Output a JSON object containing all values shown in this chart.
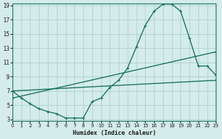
{
  "xlabel": "Humidex (Indice chaleur)",
  "ylabel": "",
  "bg_color": "#d4ecea",
  "line_color": "#1a7060",
  "grid_color": "#b0d4d0",
  "xlim": [
    0,
    23
  ],
  "ylim": [
    3,
    19
  ],
  "xticks": [
    0,
    1,
    2,
    3,
    4,
    5,
    6,
    7,
    8,
    9,
    10,
    11,
    12,
    13,
    14,
    15,
    16,
    17,
    18,
    19,
    20,
    21,
    22,
    23
  ],
  "yticks": [
    3,
    5,
    7,
    9,
    11,
    13,
    15,
    17,
    19
  ],
  "line1_x": [
    0,
    1,
    2,
    3,
    4,
    5,
    6,
    7,
    8,
    9,
    10,
    11,
    12,
    13,
    14,
    15,
    16,
    17,
    18,
    19,
    20,
    21,
    22,
    23
  ],
  "line1_y": [
    7,
    6,
    5.2,
    4.5,
    4.1,
    3.8,
    3.2,
    3.2,
    3.2,
    5.5,
    6.0,
    7.5,
    8.5,
    10.2,
    13.2,
    16.2,
    18.2,
    19.2,
    19.2,
    18.2,
    14.4,
    10.5,
    10.5,
    9.2
  ],
  "line2_x": [
    0,
    23
  ],
  "line2_y": [
    7.0,
    8.5
  ],
  "line3_x": [
    0,
    23
  ],
  "line3_y": [
    6.0,
    12.5
  ]
}
